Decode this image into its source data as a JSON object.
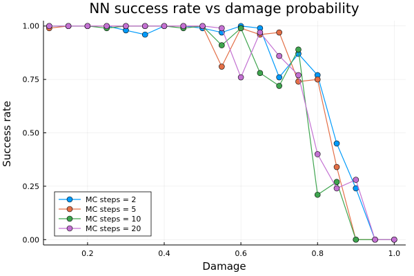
{
  "chart_data": {
    "type": "line",
    "title": "NN success rate vs damage probability",
    "xlabel": "Damage",
    "ylabel": "Success rate",
    "xlim": [
      0.085,
      1.03
    ],
    "ylim": [
      -0.025,
      1.025
    ],
    "xticks": [
      0.2,
      0.4,
      0.6,
      0.8,
      1.0
    ],
    "xtick_labels": [
      "0.2",
      "0.4",
      "0.6",
      "0.8",
      "1.0"
    ],
    "yticks": [
      0.0,
      0.25,
      0.5,
      0.75,
      1.0
    ],
    "ytick_labels": [
      "0.00",
      "0.25",
      "0.50",
      "0.75",
      "1.00"
    ],
    "grid": true,
    "legend_position": "bottom-left",
    "x": [
      0.1,
      0.15,
      0.2,
      0.25,
      0.3,
      0.35,
      0.4,
      0.45,
      0.5,
      0.55,
      0.6,
      0.65,
      0.7,
      0.75,
      0.8,
      0.85,
      0.9,
      0.95,
      1.0
    ],
    "series": [
      {
        "name": "MC steps = 2",
        "color": "#009AFA",
        "values": [
          1.0,
          1.0,
          1.0,
          1.0,
          0.98,
          0.96,
          1.0,
          1.0,
          0.99,
          0.97,
          1.0,
          0.99,
          0.76,
          0.87,
          0.77,
          0.45,
          0.24,
          0.0,
          0.0
        ]
      },
      {
        "name": "MC steps = 5",
        "color": "#E36F47",
        "values": [
          0.99,
          1.0,
          1.0,
          1.0,
          1.0,
          1.0,
          1.0,
          1.0,
          1.0,
          0.81,
          0.99,
          0.96,
          0.97,
          0.74,
          0.75,
          0.34,
          0.0,
          0.0,
          0.0
        ]
      },
      {
        "name": "MC steps = 10",
        "color": "#3EA44E",
        "values": [
          1.0,
          1.0,
          1.0,
          0.99,
          1.0,
          1.0,
          1.0,
          0.99,
          1.0,
          0.91,
          0.99,
          0.78,
          0.72,
          0.89,
          0.21,
          0.27,
          0.0,
          0.0,
          0.0
        ]
      },
      {
        "name": "MC steps = 20",
        "color": "#C371D2",
        "values": [
          1.0,
          1.0,
          1.0,
          1.0,
          1.0,
          1.0,
          1.0,
          1.0,
          1.0,
          0.99,
          0.76,
          0.97,
          0.86,
          0.77,
          0.4,
          0.24,
          0.28,
          0.0,
          0.0
        ]
      }
    ]
  }
}
